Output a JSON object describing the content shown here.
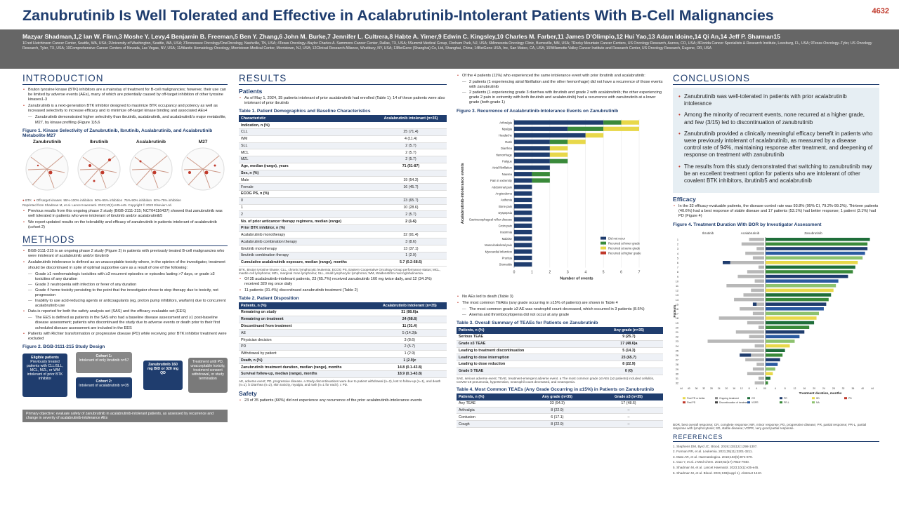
{
  "header": {
    "title": "Zanubrutinib Is Well Tolerated and Effective in Acalabrutinib-Intolerant Patients With B-Cell Malignancies",
    "poster_number": "4632",
    "authors": "Mazyar Shadman,1,2 Ian W. Flinn,3 Moshe Y. Levy,4 Benjamin B. Freeman,5 Ben Y. Zhang,6 John M. Burke,7 Jennifer L. Cultrera,8 Habte A. Yimer,9 Edwin C. Kingsley,10 Charles M. Farber,11 James D’Olimpio,12 Hui Yao,13 Adam Idoine,14 Qi An,14 Jeff P. Sharman15",
    "affiliations": "1Fred Hutchinson Cancer Center, Seattle, WA, USA; 2University of Washington, Seattle, WA, USA; 3Tennessee Oncology/OneOncology, Nashville, TN, USA; 4Texas Oncology–Baylor Charles A. Sammons Cancer Center, Dallas, TX, USA; 5Summit Medical Group, Florham Park, NJ, USA; 6Minnesota Oncology Clinic, Burnsville, MN, USA; 7Rocky Mountain Cancer Centers, US Oncology Research, Aurora, CO, USA; 8Florida Cancer Specialists & Research Institute, Leesburg, FL, USA; 9Texas Oncology–Tyler, US Oncology Research, Tyler, TX, USA; 10Comprehensive Cancer Centers of Nevada, Las Vegas, NV, USA; 11Atlantic Hematology Oncology, Morristown Medical Center, Morristown, NJ, USA; 12Clinical Research Alliance, Westbury, NY, USA; 13BeiGene (Shanghai) Co, Ltd, Shanghai, China; 14BeiGene USA, Inc, San Mateo, CA, USA; 15Willamette Valley Cancer Institute and Research Center, US Oncology Research, Eugene, OR, USA"
  },
  "intro": {
    "heading": "INTRODUCTION",
    "b1": "Bruton tyrosine kinase (BTK) inhibitors are a mainstay of treatment for B-cell malignancies; however, their use can be limited by adverse events (AEs), many of which are potentially caused by off-target inhibition of other tyrosine kinases1-3",
    "b2": "Zanubrutinib is a next-generation BTK inhibitor designed to maximize BTK occupancy and potency as well as increased selectivity to increase efficacy and to minimize off-target kinase binding and associated AEs4",
    "s1": "Zanubrutinib demonstrated higher selectivity than ibrutinib, acalabrutinib, and acalabrutinib's major metabolite, M27, by kinase profiling (Figure 1)5,6",
    "fig1_title": "Figure 1. Kinase Selectivity of Zanubrutinib, Ibrutinib, Acalabrutinib, and Acalabrutinib Metabolite M27",
    "kin": [
      "Zanubrutinib",
      "Ibrutinib",
      "Acalabrutinib",
      "M27"
    ],
    "legend_btk": "BTK",
    "legend_off": "Off-target kinases",
    "legend1": "95%-100% inhibition",
    "legend2": "90%-95% inhibition",
    "legend3": "75%-90% inhibition",
    "legend4": "50%-75% inhibition",
    "fig1_note": "Reprinted from Shadman M, et al. Lancet Haematol. 2023;10(1):e35-e45. Copyright © 2022 Elsevier Ltd.",
    "b3": "Previous results from this ongoing phase 2 study (BGB-3111-215; NCT04116437) showed that zanubrutinib was well tolerated in patients who were intolerant of ibrutinib and/or acalabrutinib5",
    "b4": "We report updated results on the tolerability and efficacy of zanubrutinib in patients intolerant of acalabrutinib (cohort 2)"
  },
  "methods": {
    "heading": "METHODS",
    "b1": "BGB-3111-215 is an ongoing phase 2 study (Figure 2) in patients with previously treated B-cell malignancies who were intolerant of acalabrutinib and/or ibrutinib",
    "b2": "Acalabrutinib intolerance is defined as an unacceptable toxicity where, in the opinion of the investigator, treatment should be discontinued in spite of optimal supportive care as a result of one of the following:",
    "s1": "Grade ≥1 nonhematologic toxicities with ≥3 recurrent episodes or episodes lasting >7 days, or grade ≥3 toxicities of any duration",
    "s2": "Grade 3 neutropenia with infection or fever of any duration",
    "s3": "Grade 4 heme toxicity persisting to the point that the investigator chose to stop therapy due to toxicity, not progression",
    "s4": "Inability to use acid-reducing agents or anticoagulants (eg, proton pump inhibitors, warfarin) due to concurrent acalabrutinib use",
    "b3": "Data is reported for both the safety analysis set (SAS) and the efficacy evaluable set (EES)",
    "s5": "The EES is defined as patients in the SAS who had a baseline disease assessment and ≥1 post-baseline disease assessment; patients who discontinued the study due to adverse events or death prior to their first scheduled disease assessment are included in the EES",
    "b4": "Patients with Richter transformation or progressive disease (PD) while receiving prior BTK inhibitor treatment were excluded",
    "fig2_title": "Figure 2. BGB-3111-215 Study Design",
    "elig_title": "Eligible patients",
    "elig_text": "Previously treated patients with CLL/SLL, MCL, MZL, or WM intolerant of prior BTK inhibitor",
    "c1_title": "Cohort 1:",
    "c1_text": "Intolerant of only ibrutinib n=57",
    "c2_title": "Cohort 2:",
    "c2_text": "Intolerant of acalabrutinib n=35",
    "dose": "Zanubrutinib 160 mg BID or 320 mg QD",
    "end": "Treatment until PD, unacceptable toxicity, treatment consent withdrawal, or study termination",
    "obj": "Primary objective: evaluate safety of zanubrutinib in acalabrutinib-intolerant patients, as assessed by recurrence and change in severity of acalabrutinib-intolerance AEs"
  },
  "results": {
    "heading": "RESULTS",
    "patients_h": "Patients",
    "pb1": "As of May 1, 2024, 35 patients intolerant of prior acalabrutinib had enrolled (Table 1); 14 of these patients were also intolerant of prior ibrutinib",
    "t1_title": "Table 1. Patient Demographics and Baseline Characteristics",
    "t1_h1": "Characteristic",
    "t1_h2": "Acalabrutinib intolerant (n=35)",
    "t1_rows": [
      [
        "Indication, n (%)",
        "",
        "hd"
      ],
      [
        "CLL",
        "25 (71.4)",
        ""
      ],
      [
        "WM",
        "4 (11.4)",
        ""
      ],
      [
        "SLL",
        "2 (5.7)",
        ""
      ],
      [
        "MCL",
        "2 (5.7)",
        ""
      ],
      [
        "MZL",
        "2 (5.7)",
        ""
      ],
      [
        "Age, median (range), years",
        "71 (51-87)",
        "hd"
      ],
      [
        "Sex, n (%)",
        "",
        "hd"
      ],
      [
        "Male",
        "19 (54.3)",
        ""
      ],
      [
        "Female",
        "16 (45.7)",
        ""
      ],
      [
        "ECOG PS, n (%)",
        "",
        "hd"
      ],
      [
        "0",
        "23 (65.7)",
        ""
      ],
      [
        "1",
        "10 (28.6)",
        ""
      ],
      [
        "2",
        "2 (5.7)",
        ""
      ],
      [
        "No. of prior anticancer therapy regimens, median (range)",
        "2 (1-6)",
        "hd"
      ],
      [
        "Prior BTK inhibitor, n (%)",
        "",
        "hd"
      ],
      [
        "Acalabrutinib monotherapy",
        "32 (91.4)",
        ""
      ],
      [
        "Acalabrutinib combination therapy",
        "3 (8.6)",
        ""
      ],
      [
        "Ibrutinib monotherapy",
        "13 (37.1)",
        ""
      ],
      [
        "Ibrutinib combination therapy",
        "1 (2.9)",
        ""
      ],
      [
        "Cumulative acalabrutinib exposure, median (range), months",
        "5.7 (0.2-68.6)",
        "hd"
      ]
    ],
    "t1_note": "BTK, Bruton tyrosine kinase; CLL, chronic lymphocytic leukemia; ECOG PS, Eastern Cooperative Oncology Group performance status; MCL, mantle cell lymphoma; MZL, marginal zone lymphoma; SLL, small lymphocytic lymphoma; WM, Waldenström macroglobulinemia.",
    "pb2": "Of 35 acalabrutinib-intolerant patients, 23 (65.7%) received zanubrutinib 160 mg twice daily, and 12 (34.3%) received 320 mg once daily",
    "pb3": "11 patients (31.4%) discontinued zanubrutinib treatment (Table 2)",
    "t2_title": "Table 2. Patient Disposition",
    "t2_h1": "Patients, n (%)",
    "t2_h2": "Acalabrutinib intolerant (n=35)",
    "t2_rows": [
      [
        "Remaining on study",
        "31 (88.6)a",
        "hd"
      ],
      [
        "Remaining on treatment",
        "24 (68.6)",
        "hd"
      ],
      [
        "Discontinued from treatment",
        "11 (31.4)",
        "hd"
      ],
      [
        "AE",
        "5 (14.3)b",
        ""
      ],
      [
        "Physician decision",
        "3 (8.6)",
        ""
      ],
      [
        "PD",
        "2 (5.7)",
        ""
      ],
      [
        "Withdrawal by patient",
        "1 (2.9)",
        ""
      ],
      [
        "Death, n (%)",
        "1 (2.9)c",
        "hd"
      ],
      [
        "Zanubrutinib treatment duration, median (range), months",
        "14.8 (0.1-43.8)",
        "hd"
      ],
      [
        "Survival follow-up, median (range), months",
        "18.9 (0.1-43.8)",
        "hd"
      ]
    ],
    "t2_note": "AE, adverse event; PD, progressive disease. a Study discontinuations were due to patient withdrawal (n=2), lost to follow-up (n=1), and death (n=1). b Diarrhea (n=2), skin toxicity, myalgia, and rash (n=1 for each). c PD.",
    "safety_h": "Safety",
    "sb1": "23 of 35 patients (66%) did not experience any recurrence of the prior acalabrutinib-intolerance events"
  },
  "col3": {
    "b1": "Of the 4 patients (11%) who experienced the same intolerance event with prior ibrutinib and acalabrutinib:",
    "s1": "2 patients (1 experiencing atrial fibrillation and the other hemorrhage) did not have a recurrence of those events with zanubrutinib",
    "s2": "2 patients (1 experiencing grade 3 diarrhea with ibrutinib and grade 2 with acalabrutinib; the other experiencing grade 2 pain in extremity with both ibrutinib and acalabrutinib) had a recurrence with zanubrutinib at a lower grade (both grade 1)",
    "fig3_title": "Figure 3. Recurrence of Acalabrutinib-Intolerance Events on Zanubrutinib",
    "b2": "No AEs led to death (Table 3)",
    "b3": "The most common TEAEs (any grade occurring in ≥15% of patients) are shown in Table 4",
    "s3": "The most common grade ≥3 AE was neutrophil count decreased, which occurred in 3 patients (8.6%)",
    "s4": "Anemia and thrombocytopenia did not occur at any grade",
    "t3_title": "Table 3. Overall Summary of TEAEs for Patients on Zanubrutinib",
    "t3_h1": "Patients, n (%)",
    "t3_h2": "Any grade (n=35)",
    "t3_rows": [
      [
        "Serious TEAE",
        "9 (25.7)"
      ],
      [
        "Grade ≥3 TEAE",
        "17 (48.6)a"
      ],
      [
        "Leading to treatment discontinuation",
        "5 (14.3)"
      ],
      [
        "Leading to dose interruption",
        "23 (65.7)"
      ],
      [
        "Leading to dose reduction",
        "8 (22.9)"
      ],
      [
        "Grade 5 TEAE",
        "0 (0)"
      ]
    ],
    "t3_note": "SAE, serious adverse event; TEAE, treatment-emergent adverse event. a The most common grade ≥3 AEs (≥2 patients) included cellulitis, COVID-19 pneumonia, hypertension, neutrophil count decreased, and neutropenia.",
    "t4_title": "Table 4. Most Common TEAEs (Any Grade Occurring in ≥15%) in Patients on Zanubrutinib",
    "t4_h1": "Patients, n (%)",
    "t4_h2": "Any grade (n=35)",
    "t4_h3": "Grade ≥3 (n=35)",
    "t4_rows": [
      [
        "Any TEAE",
        "33 (94.3)",
        "17 (48.6)"
      ],
      [
        "Arthralgia",
        "8 (22.9)",
        "–"
      ],
      [
        "Contusion",
        "6 (17.1)",
        "–"
      ],
      [
        "Cough",
        "8 (22.9)",
        "–"
      ]
    ]
  },
  "chart_data": [
    {
      "type": "bar",
      "orientation": "horizontal",
      "stacked": true,
      "title": "Figure 3. Recurrence of Acalabrutinib-Intolerance Events on Zanubrutinib",
      "xlabel": "Number of events",
      "ylabel": "Acalabrutinib-intolerance events",
      "xlim": [
        0,
        7
      ],
      "xticks": [
        0,
        1,
        2,
        3,
        4,
        5,
        6,
        7
      ],
      "categories": [
        "Arthralgia",
        "Myalgia",
        "Headache",
        "Rash",
        "Diarrhea",
        "Hemorrhage",
        "Fatigue",
        "Atrial fibrillation",
        "Nausea",
        "Pain in extremity",
        "Abdominal pain",
        "Angioedema",
        "Asthenia",
        "Bone pain",
        "Dyspepsia",
        "Gastroesophageal reflux disease",
        "Groin pain",
        "Insomnia",
        "Malaise",
        "Musculoskeletal pain",
        "Myocardial infarction",
        "Pruritus",
        "Stomatitis"
      ],
      "series": [
        {
          "name": "Did not recur",
          "color": "#1f3d6e",
          "values": [
            5,
            3,
            4,
            2,
            2,
            2,
            2,
            2,
            1,
            1,
            1,
            1,
            1,
            1,
            1,
            1,
            1,
            1,
            1,
            1,
            1,
            1,
            1
          ]
        },
        {
          "name": "Recurred at lower grade",
          "color": "#3a8a3a",
          "values": [
            1,
            2,
            0,
            1,
            0,
            0,
            1,
            0,
            1,
            1,
            0,
            0,
            0,
            0,
            0,
            0,
            0,
            0,
            0,
            0,
            0,
            0,
            0
          ]
        },
        {
          "name": "Recurred at same grade",
          "color": "#e8d84a",
          "values": [
            1,
            2,
            1,
            1,
            1,
            1,
            0,
            0,
            0,
            0,
            0,
            0,
            0,
            0,
            0,
            0,
            0,
            0,
            0,
            0,
            0,
            0,
            0
          ]
        },
        {
          "name": "Recurred at higher grade",
          "color": "#c0392b",
          "values": [
            0,
            0,
            0,
            0,
            0,
            0,
            0,
            0,
            0,
            0,
            0,
            0,
            0,
            0,
            0,
            0,
            0,
            0,
            0,
            0,
            0,
            0,
            0
          ]
        }
      ],
      "legend_position": "bottom-right"
    },
    {
      "type": "bar",
      "title": "Figure 4. Treatment Duration With BOR by Investigator Assessment",
      "xlabel": "Treatment duration, months",
      "ylabel": "Patients",
      "panels": [
        "Ibrutinib",
        "Acalabrutinib",
        "Zanubrutinib"
      ],
      "left_ticks": [
        "44",
        "40",
        "36",
        "32",
        "28",
        "24",
        "20",
        "16",
        "12",
        "8",
        "4",
        "0"
      ],
      "right_ticks": [
        "0",
        "4",
        "8",
        "12",
        "16",
        "20",
        "24",
        "28",
        "32",
        "36",
        "40",
        "44"
      ],
      "patients": [
        "1",
        "2",
        "3",
        "4",
        "5",
        "6",
        "7",
        "8",
        "9",
        "10",
        "11",
        "12",
        "13",
        "14",
        "15",
        "16",
        "17",
        "18",
        "19",
        "20",
        "21",
        "22",
        "23",
        "24",
        "25",
        "26",
        "27",
        "28",
        "29",
        "30",
        "31",
        "32"
      ],
      "zanubrutinib_months": [
        43,
        42,
        42,
        41,
        40,
        38,
        37,
        36,
        34,
        30,
        29,
        28,
        27,
        26,
        25,
        24,
        22,
        21,
        20,
        18,
        16,
        14,
        12,
        10,
        8,
        7,
        6,
        5,
        4,
        3,
        2,
        1
      ],
      "acalabrutinib_months": [
        8,
        12,
        4,
        10,
        6,
        18,
        3,
        9,
        14,
        5,
        20,
        7,
        11,
        16,
        4,
        13,
        6,
        24,
        9,
        3,
        15,
        8,
        30,
        5,
        12,
        7,
        10,
        4,
        6,
        9,
        3,
        5
      ],
      "ibrutinib_months": [
        0,
        0,
        0,
        0,
        0,
        4,
        0,
        0,
        0,
        0,
        0,
        0,
        0,
        0,
        2,
        0,
        0,
        0,
        0,
        0,
        0,
        0,
        0,
        0,
        0,
        6,
        0,
        0,
        0,
        0,
        0,
        0
      ],
      "legend": [
        "First PR or better",
        "First PD",
        "Ongoing treatment",
        "Discontinuation of treatment",
        "CR",
        "VGPR",
        "PR",
        "PR-L",
        "SD",
        "NA",
        "PD"
      ]
    }
  ],
  "conclusions": {
    "heading": "CONCLUSIONS",
    "c1": "Zanubrutinib was well-tolerated in patients with prior acalabrutinib intolerance",
    "c2": "Among the minority of recurrent events, none recurred at a higher grade, and few (3/15) led to discontinuation of zanubrutinib",
    "c3": "Zanubrutinib provided a clinically meaningful efficacy benefit in patients who were previously intolerant of acalabrutinib, as measured by a disease control rate of 94%, maintaining response after treatment, and deepening of response on treatment with zanubrutinib",
    "c4": "The results from this study demonstrated that switching to zanubrutinib may be an excellent treatment option for patients who are intolerant of other covalent BTK inhibitors, ibrutinib5 and acalabrutinib",
    "efficacy_h": "Efficacy",
    "eb1": "In the 32 efficacy-evaluable patients, the disease control rate was 93.8% (95% CI, 79.2%-99.2%). Thirteen patients (40.6%) had a best response of stable disease and 17 patients (53.1%) had better response; 1 patient (3.1%) had PD (Figure 4)",
    "fig4_title": "Figure 4. Treatment Duration With BOR by Investigator Assessment",
    "fig4_note": "BOR, best overall response; CR, complete response; MR, minor response; PD, progressive disease; PR, partial response; PR-L, partial response with lymphocytosis; SD, stable disease; VGPR, very good partial response.",
    "refs_h": "REFERENCES",
    "refs": [
      "1. Stephens DM, Byrd JC. Blood. 2019;133(12):1298-1307.",
      "2. Furman RR, et al. Leukemia. 2021;35(11):3201-3211.",
      "3. Mato AR, et al. Haematologica. 2018;103(5):874-879.",
      "4. Guo Y, et al. J Med Chem. 2019;62(17):7923-7940.",
      "5. Shadman M, et al. Lancet Haematol. 2023;10(1):e35-e45.",
      "6. Shadman M, et al. Blood. 2021;138(suppl 1). Abstract 1410."
    ]
  }
}
